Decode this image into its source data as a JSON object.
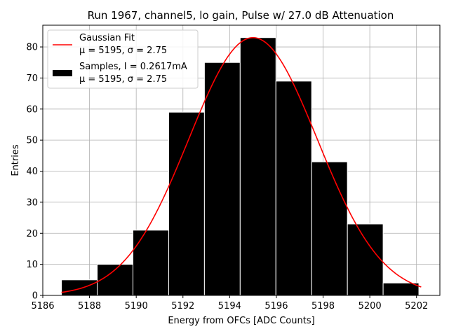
{
  "chart_data": {
    "type": "bar",
    "title": "Run 1967, channel5, lo gain, Pulse w/ 27.0 dB Attenuation",
    "xlabel": "Energy from OFCs [ADC Counts]",
    "ylabel": "Entries",
    "xlim": [
      5186,
      5203
    ],
    "ylim": [
      0,
      87
    ],
    "xticks": [
      5186,
      5188,
      5190,
      5192,
      5194,
      5196,
      5198,
      5200,
      5202
    ],
    "yticks": [
      0,
      10,
      20,
      30,
      40,
      50,
      60,
      70,
      80
    ],
    "grid": true,
    "legend_position": "top-left",
    "bins": [
      {
        "x0": 5186.8,
        "x1": 5188.33,
        "count": 5
      },
      {
        "x0": 5188.33,
        "x1": 5189.86,
        "count": 10
      },
      {
        "x0": 5189.86,
        "x1": 5191.39,
        "count": 21
      },
      {
        "x0": 5191.39,
        "x1": 5192.92,
        "count": 59
      },
      {
        "x0": 5192.92,
        "x1": 5194.45,
        "count": 75
      },
      {
        "x0": 5194.45,
        "x1": 5195.98,
        "count": 83
      },
      {
        "x0": 5195.98,
        "x1": 5197.51,
        "count": 69
      },
      {
        "x0": 5197.51,
        "x1": 5199.04,
        "count": 43
      },
      {
        "x0": 5199.04,
        "x1": 5200.57,
        "count": 23
      },
      {
        "x0": 5200.57,
        "x1": 5202.1,
        "count": 4
      }
    ],
    "series": [
      {
        "name": "Gaussian Fit",
        "name_line2": "μ = 5195, σ = 2.75",
        "kind": "line",
        "color": "#ff0000",
        "mu": 5195,
        "sigma": 2.75,
        "amplitude": 83,
        "x_range": [
          5186.8,
          5202.2
        ]
      },
      {
        "name": "Samples, I = 0.2617mA",
        "name_line2": "μ = 5195, σ = 2.75",
        "kind": "bar",
        "color": "#000000"
      }
    ]
  }
}
